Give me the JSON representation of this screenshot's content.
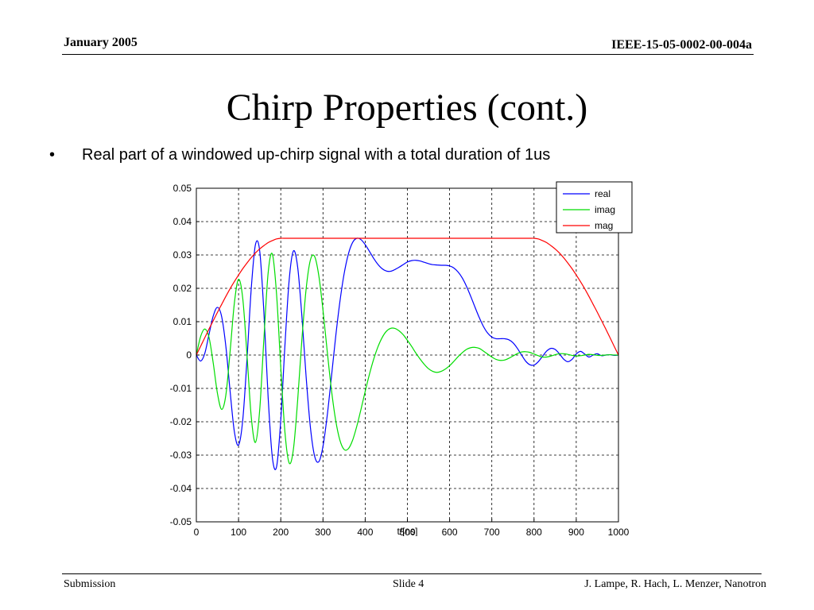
{
  "header": {
    "date": "January 2005",
    "doc_id": "IEEE-15-05-0002-00-004a"
  },
  "slide": {
    "title": "Chirp Properties (cont.)",
    "bullet_symbol": "•",
    "bullet_text": "Real part of a windowed up-chirp signal with a total duration of 1us"
  },
  "footer": {
    "left": "Submission",
    "middle": "Slide 4",
    "right": "J. Lampe, R. Hach, L. Menzer, Nanotron"
  },
  "colors": {
    "real": "#0000ff",
    "imag": "#00dd00",
    "mag": "#ff0000"
  },
  "chart_data": {
    "type": "line",
    "xlabel": "t/[ns]",
    "ylabel": "",
    "xlim": [
      0,
      1000
    ],
    "ylim": [
      -0.05,
      0.05
    ],
    "xticks": [
      0,
      100,
      200,
      300,
      400,
      500,
      600,
      700,
      800,
      900,
      1000
    ],
    "yticks": [
      -0.05,
      -0.04,
      -0.03,
      -0.02,
      -0.01,
      0,
      0.01,
      0.02,
      0.03,
      0.04,
      0.05
    ],
    "xtick_labels": [
      "0",
      "100",
      "200",
      "300",
      "400",
      "500",
      "600",
      "700",
      "800",
      "900",
      "1000"
    ],
    "ytick_labels": [
      "-0.05",
      "-0.04",
      "-0.03",
      "-0.02",
      "-0.01",
      "0",
      "0.01",
      "0.02",
      "0.03",
      "0.04",
      "0.05"
    ],
    "grid": true,
    "legend_position": "top-right",
    "x": [
      0,
      10,
      20,
      30,
      40,
      50,
      60,
      70,
      80,
      90,
      100,
      110,
      120,
      130,
      140,
      150,
      160,
      170,
      180,
      190,
      200,
      210,
      220,
      230,
      240,
      250,
      260,
      270,
      280,
      290,
      300,
      310,
      320,
      330,
      340,
      350,
      360,
      370,
      380,
      390,
      400,
      410,
      420,
      430,
      440,
      450,
      460,
      470,
      480,
      490,
      500,
      510,
      520,
      530,
      540,
      550,
      560,
      570,
      580,
      590,
      600,
      610,
      620,
      630,
      640,
      650,
      660,
      670,
      680,
      690,
      700,
      710,
      720,
      730,
      740,
      750,
      760,
      770,
      780,
      790,
      800,
      810,
      820,
      830,
      840,
      850,
      860,
      870,
      880,
      890,
      900,
      910,
      920,
      930,
      940,
      950,
      960,
      970,
      980,
      990,
      1000
    ],
    "series": [
      {
        "name": "real",
        "values": [
          0,
          -0.0018,
          0.0005,
          0.0062,
          0.0117,
          0.0143,
          0.0115,
          0.0025,
          -0.0109,
          -0.0229,
          -0.027,
          -0.0194,
          -0.0012,
          0.0198,
          0.0331,
          0.0313,
          0.0129,
          -0.0125,
          -0.0306,
          -0.0335,
          -0.0195,
          0.0032,
          0.0226,
          0.0312,
          0.0264,
          0.0117,
          -0.0064,
          -0.0214,
          -0.0302,
          -0.032,
          -0.0274,
          -0.0182,
          -0.0066,
          0.0054,
          0.0159,
          0.0243,
          0.0302,
          0.0337,
          0.035,
          0.0346,
          0.0331,
          0.0311,
          0.029,
          0.0272,
          0.0259,
          0.0252,
          0.0251,
          0.0256,
          0.0263,
          0.0271,
          0.0279,
          0.0283,
          0.0284,
          0.0282,
          0.0278,
          0.0274,
          0.0271,
          0.027,
          0.0269,
          0.0269,
          0.0267,
          0.0261,
          0.0249,
          0.0231,
          0.0206,
          0.0176,
          0.0144,
          0.0113,
          0.0086,
          0.0066,
          0.0054,
          0.0049,
          0.0049,
          0.0049,
          0.0046,
          0.0037,
          0.0021,
          0.0001,
          -0.0018,
          -0.0029,
          -0.003,
          -0.002,
          -0.0004,
          0.0012,
          0.002,
          0.0017,
          0.0004,
          -0.0012,
          -0.002,
          -0.0013,
          0.0003,
          0.0011,
          0.0003,
          -0.0006,
          0,
          0.0004,
          -0.0002,
          0,
          0.0001,
          -0.0001,
          0
        ],
        "color": "#0000ff"
      },
      {
        "name": "imag",
        "values": [
          0,
          0.0055,
          0.0078,
          0.0053,
          -0.0024,
          -0.0115,
          -0.0163,
          -0.0119,
          0.0011,
          0.0155,
          0.0227,
          0.0169,
          0,
          -0.0184,
          -0.0262,
          -0.0166,
          0.0048,
          0.0245,
          0.0303,
          0.0183,
          -0.0037,
          -0.0233,
          -0.0324,
          -0.0282,
          -0.0136,
          0.0046,
          0.0197,
          0.0284,
          0.0296,
          0.0239,
          0.0135,
          0.0012,
          -0.0104,
          -0.0195,
          -0.0255,
          -0.0283,
          -0.0281,
          -0.0256,
          -0.0214,
          -0.0163,
          -0.0109,
          -0.0058,
          -0.0013,
          0.0024,
          0.0052,
          0.0071,
          0.008,
          0.008,
          0.0073,
          0.0061,
          0.0044,
          0.0026,
          0.0006,
          -0.0012,
          -0.0028,
          -0.0041,
          -0.0049,
          -0.0052,
          -0.0049,
          -0.0042,
          -0.0032,
          -0.0019,
          -0.0005,
          0.0007,
          0.0017,
          0.0022,
          0.0023,
          0.002,
          0.0012,
          0.0003,
          -0.0006,
          -0.0013,
          -0.0016,
          -0.0015,
          -0.001,
          -0.0003,
          0.0004,
          0.0009,
          0.001,
          0.0008,
          0.0003,
          -0.0002,
          -0.0006,
          -0.0006,
          -0.0003,
          0.0001,
          0.0004,
          0.0004,
          0.0002,
          -0.0001,
          -0.0003,
          -0.0002,
          0,
          0.0002,
          0.0001,
          -0.0001,
          -0.0001,
          0,
          0.0001,
          0,
          0
        ],
        "color": "#00dd00"
      },
      {
        "name": "mag",
        "values": [
          0,
          0.0026,
          0.0052,
          0.0078,
          0.0103,
          0.0128,
          0.0152,
          0.0176,
          0.0199,
          0.022,
          0.024,
          0.0259,
          0.0276,
          0.0292,
          0.0306,
          0.0318,
          0.0328,
          0.0337,
          0.0343,
          0.0348,
          0.035,
          0.035,
          0.035,
          0.035,
          0.035,
          0.035,
          0.035,
          0.035,
          0.035,
          0.035,
          0.035,
          0.035,
          0.035,
          0.035,
          0.035,
          0.035,
          0.035,
          0.035,
          0.035,
          0.035,
          0.035,
          0.035,
          0.035,
          0.035,
          0.035,
          0.035,
          0.035,
          0.035,
          0.035,
          0.035,
          0.035,
          0.035,
          0.035,
          0.035,
          0.035,
          0.035,
          0.035,
          0.035,
          0.035,
          0.035,
          0.035,
          0.035,
          0.035,
          0.035,
          0.035,
          0.035,
          0.035,
          0.035,
          0.035,
          0.035,
          0.035,
          0.035,
          0.035,
          0.035,
          0.035,
          0.035,
          0.035,
          0.035,
          0.035,
          0.035,
          0.035,
          0.0348,
          0.0343,
          0.0337,
          0.0328,
          0.0318,
          0.0306,
          0.0292,
          0.0276,
          0.0259,
          0.024,
          0.022,
          0.0199,
          0.0176,
          0.0152,
          0.0128,
          0.0103,
          0.0078,
          0.0052,
          0.0026,
          0
        ],
        "color": "#ff0000"
      }
    ]
  }
}
